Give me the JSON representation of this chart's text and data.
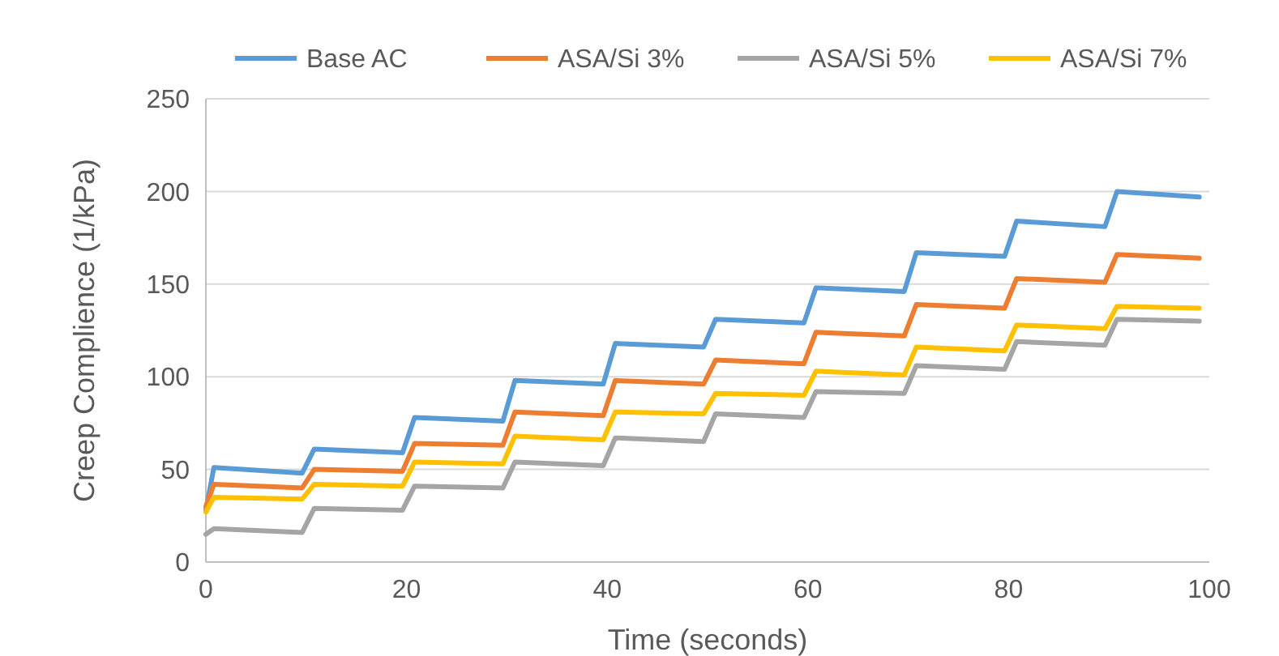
{
  "chart_data": {
    "type": "line",
    "xlabel": "Time (seconds)",
    "ylabel": "Creep Complience (1/kPa)",
    "x": [
      0,
      0.8,
      9.6,
      10.8,
      19.6,
      20.8,
      29.6,
      30.8,
      39.6,
      40.8,
      49.6,
      50.8,
      59.6,
      60.8,
      69.6,
      70.8,
      79.6,
      80.8,
      89.6,
      90.8,
      99
    ],
    "series": [
      {
        "name": "Base AC",
        "color": "#5b9bd5",
        "values": [
          28,
          51,
          48,
          61,
          59,
          78,
          76,
          98,
          96,
          118,
          116,
          131,
          129,
          148,
          146,
          167,
          165,
          184,
          181,
          200,
          197
        ]
      },
      {
        "name": "ASA/Si 3%",
        "color": "#ed7d31",
        "values": [
          30,
          42,
          40,
          50,
          49,
          64,
          63,
          81,
          79,
          98,
          96,
          109,
          107,
          124,
          122,
          139,
          137,
          153,
          151,
          166,
          164
        ]
      },
      {
        "name": "ASA/Si 5%",
        "color": "#a5a5a5",
        "values": [
          15,
          18,
          16,
          29,
          28,
          41,
          40,
          54,
          52,
          67,
          65,
          80,
          78,
          92,
          91,
          106,
          104,
          119,
          117,
          131,
          130
        ]
      },
      {
        "name": "ASA/Si 7%",
        "color": "#ffc000",
        "values": [
          27,
          35,
          34,
          42,
          41,
          54,
          53,
          68,
          66,
          81,
          80,
          91,
          90,
          103,
          101,
          116,
          114,
          128,
          126,
          138,
          137
        ]
      }
    ],
    "xlim": [
      0,
      100
    ],
    "xticks": [
      0,
      20,
      40,
      60,
      80,
      100
    ],
    "ylim": [
      0,
      250
    ],
    "yticks": [
      0,
      50,
      100,
      150,
      200,
      250
    ],
    "grid": "y",
    "legend": "top",
    "marker": "none",
    "line_style": "solid"
  }
}
